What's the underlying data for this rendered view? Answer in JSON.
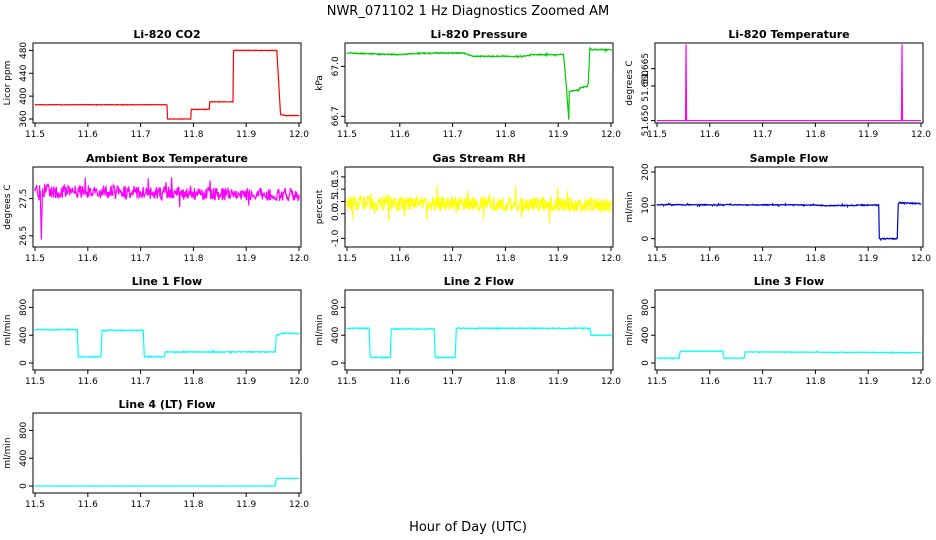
{
  "figure": {
    "title": "NWR_071102  1 Hz Diagnostics Zoomed AM",
    "xlabel": "Hour of Day (UTC)"
  },
  "chart_data": [
    {
      "type": "line",
      "title": "Li-820 CO2",
      "ylabel": "Licor ppm",
      "color": "#ff0000",
      "xlim": [
        11.5,
        12.0
      ],
      "ylim": [
        353,
        493
      ],
      "xticks": [
        "11.5",
        "11.6",
        "11.7",
        "11.8",
        "11.9",
        "12.0"
      ],
      "yticks": [
        360,
        400,
        440,
        480
      ],
      "noise": 0.4,
      "x": [
        11.5,
        11.75,
        11.751,
        11.795,
        11.796,
        11.83,
        11.831,
        11.875,
        11.876,
        11.958,
        11.965,
        11.975,
        12.0
      ],
      "y": [
        385,
        385,
        360,
        360,
        377,
        377,
        390,
        390,
        480,
        480,
        368,
        366,
        366
      ]
    },
    {
      "type": "line",
      "title": "Li-820 Pressure",
      "ylabel": "kPa",
      "color": "#00cc00",
      "xlim": [
        11.5,
        12.0
      ],
      "ylim": [
        66.66,
        67.14
      ],
      "xticks": [
        "11.5",
        "11.6",
        "11.7",
        "11.8",
        "11.9",
        "12.0"
      ],
      "yticks": [
        "66.7",
        "67.0"
      ],
      "noise": 0.003,
      "x": [
        11.5,
        11.6,
        11.64,
        11.72,
        11.74,
        11.83,
        11.85,
        11.91,
        11.915,
        11.92,
        11.921,
        11.94,
        11.941,
        11.955,
        11.957,
        11.96,
        11.963,
        11.97,
        12.0
      ],
      "y": [
        67.08,
        67.07,
        67.08,
        67.08,
        67.06,
        67.06,
        67.07,
        67.07,
        66.9,
        66.68,
        66.85,
        66.86,
        66.87,
        66.88,
        66.9,
        67.11,
        67.1,
        67.1,
        67.1
      ]
    },
    {
      "type": "line",
      "title": "Li-820 Temperature",
      "ylabel": "degrees C",
      "color": "#ff00ff",
      "xlim": [
        11.5,
        12.0
      ],
      "ylim": [
        51.6493,
        51.6724
      ],
      "xticks": [
        "11.5",
        "11.6",
        "11.7",
        "11.8",
        "11.9",
        "12.0"
      ],
      "yticks": [
        "51.650",
        "51.660",
        "51.665"
      ],
      "noise": 0,
      "x": [
        11.5,
        11.554,
        11.555,
        11.556,
        11.557,
        11.963,
        11.964,
        11.965,
        11.966,
        12.0
      ],
      "y": [
        51.65,
        51.65,
        51.672,
        51.65,
        51.65,
        51.65,
        51.672,
        51.65,
        51.65,
        51.65
      ]
    },
    {
      "type": "line",
      "title": "Ambient Box Temperature",
      "ylabel": "degrees C",
      "color": "#ff00ff",
      "xlim": [
        11.5,
        12.0
      ],
      "ylim": [
        26.2,
        28.35
      ],
      "xticks": [
        "11.5",
        "11.6",
        "11.7",
        "11.8",
        "11.9",
        "12.0"
      ],
      "yticks": [
        "26.5",
        "27.5"
      ],
      "noise": 0.18,
      "x": [
        11.5,
        11.51,
        11.512,
        11.514,
        11.52,
        12.0
      ],
      "y": [
        27.7,
        27.7,
        26.4,
        27.7,
        27.7,
        27.6
      ]
    },
    {
      "type": "line",
      "title": "Gas Stream RH",
      "ylabel": "percent",
      "color": "#ffff00",
      "xlim": [
        11.5,
        12.0
      ],
      "ylim": [
        -1.35,
        1.9
      ],
      "xticks": [
        "11.5",
        "11.6",
        "11.7",
        "11.8",
        "11.9",
        "12.0"
      ],
      "yticks": [
        "-1.0",
        "0.0",
        "0.5",
        "1.0",
        "1.5"
      ],
      "noise": 0.3,
      "x": [
        11.5,
        12.0
      ],
      "y": [
        0.45,
        0.35
      ]
    },
    {
      "type": "line",
      "title": "Sample Flow",
      "ylabel": "ml/min",
      "color": "#0000cc",
      "xlim": [
        11.5,
        12.0
      ],
      "ylim": [
        -25,
        215
      ],
      "xticks": [
        "11.5",
        "11.6",
        "11.7",
        "11.8",
        "11.9",
        "12.0"
      ],
      "yticks": [
        0,
        100,
        200
      ],
      "noise": 1.5,
      "x": [
        11.5,
        11.8,
        11.82,
        11.92,
        11.921,
        11.955,
        11.957,
        11.96,
        12.0
      ],
      "y": [
        102,
        101,
        99,
        101,
        0,
        0,
        105,
        108,
        105
      ]
    },
    {
      "type": "line",
      "title": "Line 1 Flow",
      "ylabel": "ml/min",
      "color": "#00ffff",
      "xlim": [
        11.5,
        12.0
      ],
      "ylim": [
        -100,
        1050
      ],
      "xticks": [
        "11.5",
        "11.6",
        "11.7",
        "11.8",
        "11.9",
        "12.0"
      ],
      "yticks": [
        0,
        400,
        800
      ],
      "noise": 6,
      "x": [
        11.5,
        11.58,
        11.582,
        11.625,
        11.627,
        11.705,
        11.707,
        11.745,
        11.747,
        11.955,
        11.957,
        11.97,
        12.0
      ],
      "y": [
        480,
        480,
        90,
        90,
        470,
        470,
        90,
        90,
        160,
        160,
        400,
        430,
        420
      ]
    },
    {
      "type": "line",
      "title": "Line 2 Flow",
      "ylabel": "ml/min",
      "color": "#00ffff",
      "xlim": [
        11.5,
        12.0
      ],
      "ylim": [
        -100,
        1050
      ],
      "xticks": [
        "11.5",
        "11.6",
        "11.7",
        "11.8",
        "11.9",
        "12.0"
      ],
      "yticks": [
        0,
        400,
        800
      ],
      "noise": 6,
      "x": [
        11.5,
        11.542,
        11.544,
        11.582,
        11.584,
        11.665,
        11.667,
        11.705,
        11.707,
        11.96,
        11.962,
        12.0
      ],
      "y": [
        500,
        500,
        80,
        80,
        490,
        490,
        80,
        80,
        500,
        500,
        400,
        400
      ]
    },
    {
      "type": "line",
      "title": "Line 3 Flow",
      "ylabel": "ml/min",
      "color": "#00ffff",
      "xlim": [
        11.5,
        12.0
      ],
      "ylim": [
        -100,
        1050
      ],
      "xticks": [
        "11.5",
        "11.6",
        "11.7",
        "11.8",
        "11.9",
        "12.0"
      ],
      "yticks": [
        0,
        400,
        800
      ],
      "noise": 4,
      "x": [
        11.5,
        11.542,
        11.544,
        11.625,
        11.627,
        11.665,
        11.667,
        12.0
      ],
      "y": [
        70,
        70,
        170,
        170,
        70,
        70,
        160,
        150
      ]
    },
    {
      "type": "line",
      "title": "Line 4 (LT) Flow",
      "ylabel": "ml/min",
      "color": "#00ffff",
      "xlim": [
        11.5,
        12.0
      ],
      "ylim": [
        -100,
        1050
      ],
      "xticks": [
        "11.5",
        "11.6",
        "11.7",
        "11.8",
        "11.9",
        "12.0"
      ],
      "yticks": [
        0,
        400,
        800
      ],
      "noise": 2,
      "x": [
        11.5,
        11.955,
        11.957,
        12.0
      ],
      "y": [
        0,
        0,
        110,
        110
      ]
    }
  ]
}
